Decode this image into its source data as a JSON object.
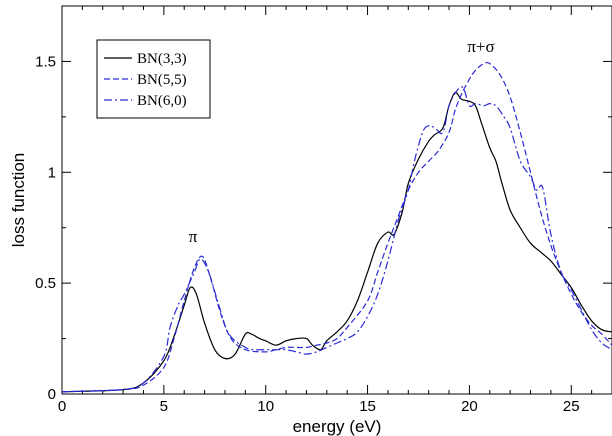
{
  "chart_data": {
    "type": "line",
    "xlabel": "energy (eV)",
    "ylabel": "loss function",
    "xlim": [
      0,
      27
    ],
    "ylim": [
      0,
      1.75
    ],
    "xticks": [
      0,
      5,
      10,
      15,
      20,
      25
    ],
    "xtick_labels": [
      "0",
      "5",
      "10",
      "15",
      "20",
      "25"
    ],
    "yticks": [
      0,
      0.5,
      1,
      1.5
    ],
    "ytick_labels": [
      "0",
      "0.5",
      "1",
      "1.5"
    ],
    "grid": false,
    "legend_placement": "top-left",
    "annotations": [
      {
        "text": "π",
        "x": 6.5,
        "y": 0.78
      },
      {
        "text": "π+σ",
        "x": 20.5,
        "y": 1.64
      }
    ],
    "series": [
      {
        "name": "BN(3,3)",
        "color": "#000000",
        "dash": "solid",
        "x": [
          0,
          3,
          4,
          5,
          5.5,
          6,
          6.3,
          6.6,
          7,
          7.5,
          8,
          8.5,
          9,
          9.3,
          9.7,
          10,
          10.5,
          11,
          11.5,
          12,
          12.3,
          12.7,
          13,
          13.5,
          14,
          14.5,
          15,
          15.5,
          16,
          16.3,
          16.7,
          17,
          17.5,
          18,
          18.3,
          18.7,
          19,
          19.3,
          19.6,
          20,
          20.3,
          20.6,
          21,
          21.3,
          21.6,
          22,
          22.5,
          23,
          23.5,
          24,
          24.5,
          25,
          25.5,
          26,
          26.5,
          27
        ],
        "y": [
          0.01,
          0.02,
          0.05,
          0.15,
          0.26,
          0.4,
          0.48,
          0.45,
          0.32,
          0.2,
          0.16,
          0.18,
          0.27,
          0.27,
          0.25,
          0.24,
          0.22,
          0.24,
          0.25,
          0.25,
          0.22,
          0.2,
          0.24,
          0.28,
          0.33,
          0.42,
          0.55,
          0.68,
          0.73,
          0.72,
          0.82,
          0.95,
          1.06,
          1.14,
          1.17,
          1.2,
          1.3,
          1.36,
          1.33,
          1.32,
          1.3,
          1.22,
          1.11,
          1.05,
          0.95,
          0.83,
          0.75,
          0.68,
          0.64,
          0.6,
          0.54,
          0.48,
          0.4,
          0.33,
          0.29,
          0.28
        ]
      },
      {
        "name": "BN(5,5)",
        "color": "#2a2ad6",
        "dash": "6,3",
        "x": [
          0,
          3,
          4,
          5,
          5.5,
          6,
          6.5,
          6.9,
          7.3,
          7.8,
          8.3,
          9,
          10,
          10.5,
          11,
          11.5,
          12,
          12.5,
          13,
          13.5,
          14,
          15,
          15.5,
          16,
          16.5,
          17,
          17.5,
          18,
          18.5,
          19,
          19.3,
          19.6,
          20,
          20.3,
          20.7,
          21,
          21.5,
          22,
          22.5,
          23,
          23.5,
          24,
          24.5,
          25,
          25.5,
          26,
          26.5,
          27
        ],
        "y": [
          0.01,
          0.02,
          0.04,
          0.12,
          0.25,
          0.42,
          0.57,
          0.62,
          0.52,
          0.36,
          0.25,
          0.2,
          0.19,
          0.2,
          0.21,
          0.21,
          0.21,
          0.22,
          0.23,
          0.25,
          0.3,
          0.42,
          0.55,
          0.68,
          0.8,
          0.92,
          1.0,
          1.05,
          1.1,
          1.18,
          1.28,
          1.35,
          1.42,
          1.46,
          1.49,
          1.49,
          1.44,
          1.34,
          1.18,
          1.0,
          0.82,
          0.67,
          0.55,
          0.45,
          0.37,
          0.31,
          0.27,
          0.22
        ]
      },
      {
        "name": "BN(6,0)",
        "color": "#2a2ad6",
        "dash": "8,3,2,3",
        "x": [
          0,
          3,
          4,
          5,
          5.3,
          5.7,
          6,
          6.5,
          6.8,
          7.2,
          7.7,
          8.2,
          9,
          9.5,
          10,
          10.5,
          11,
          11.5,
          12,
          12.5,
          13,
          13.5,
          14,
          14.5,
          15,
          15.5,
          16,
          16.5,
          17,
          17.3,
          17.7,
          18,
          18.3,
          18.7,
          19,
          19.4,
          19.7,
          20,
          20.3,
          20.7,
          21,
          21.3,
          21.7,
          22,
          22.5,
          23,
          23.3,
          23.6,
          24,
          24.5,
          25,
          25.5,
          26,
          26.5,
          27
        ],
        "y": [
          0.01,
          0.02,
          0.05,
          0.17,
          0.3,
          0.4,
          0.45,
          0.55,
          0.61,
          0.55,
          0.4,
          0.27,
          0.21,
          0.2,
          0.2,
          0.2,
          0.2,
          0.19,
          0.18,
          0.19,
          0.21,
          0.23,
          0.25,
          0.28,
          0.35,
          0.45,
          0.6,
          0.78,
          0.92,
          1.05,
          1.18,
          1.21,
          1.2,
          1.18,
          1.3,
          1.37,
          1.38,
          1.3,
          1.31,
          1.3,
          1.31,
          1.3,
          1.25,
          1.2,
          1.05,
          0.98,
          0.92,
          0.93,
          0.72,
          0.55,
          0.47,
          0.38,
          0.29,
          0.23,
          0.2
        ]
      }
    ]
  }
}
